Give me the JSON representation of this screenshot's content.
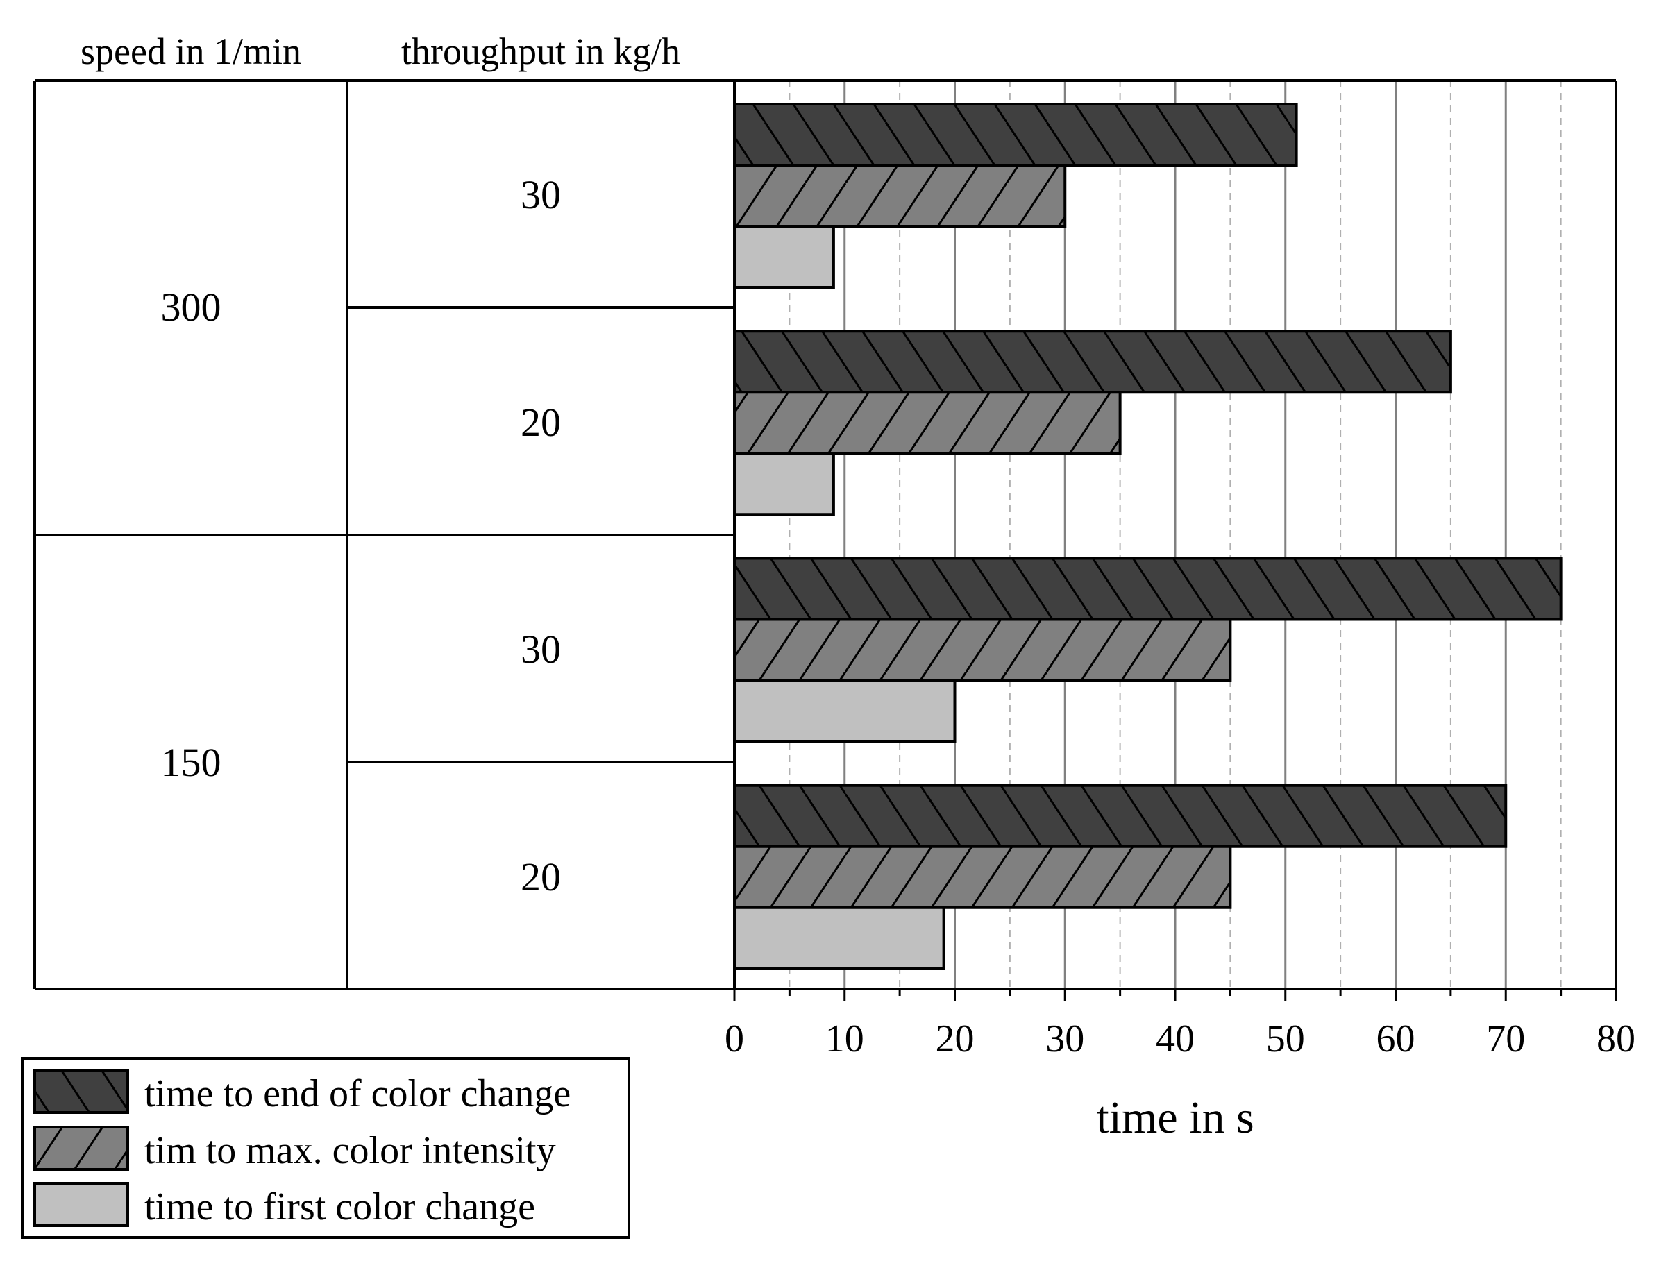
{
  "chart_data": {
    "type": "bar",
    "orientation": "horizontal",
    "title": "",
    "xlabel": "time in s",
    "xlim": [
      0,
      80
    ],
    "x_ticks": [
      0,
      10,
      20,
      30,
      40,
      50,
      60,
      70,
      80
    ],
    "grid": "vertical",
    "legend_position": "bottom-left",
    "column_headers": [
      "speed in 1/min",
      "throughput in kg/h"
    ],
    "groups": [
      {
        "speed": "300",
        "throughputs": [
          "30",
          "20"
        ]
      },
      {
        "speed": "150",
        "throughputs": [
          "30",
          "20"
        ]
      }
    ],
    "categories": [
      "300 / 30",
      "300 / 20",
      "150 / 30",
      "150 / 20"
    ],
    "series": [
      {
        "name": "time to end of color change",
        "values": [
          51,
          65,
          75,
          70
        ],
        "color": "#404040",
        "pattern": "backslash"
      },
      {
        "name": "tim to max. color intensity",
        "values": [
          30,
          35,
          45,
          45
        ],
        "color": "#808080",
        "pattern": "slash"
      },
      {
        "name": "time to first color change",
        "values": [
          9,
          9,
          20,
          19
        ],
        "color": "#c0c0c0",
        "pattern": "none"
      }
    ]
  }
}
